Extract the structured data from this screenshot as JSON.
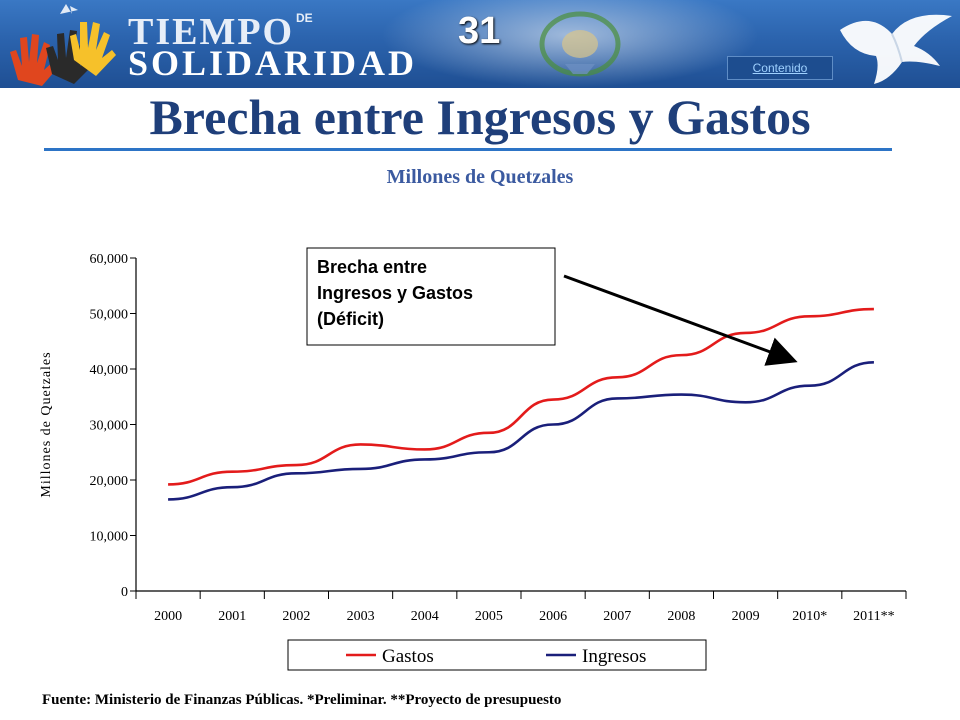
{
  "header": {
    "brand_line1": "TIEMPO",
    "brand_de": "DE",
    "brand_line2": "SOLIDARIDAD",
    "slide_number": "31",
    "contents_link": "Contenido"
  },
  "slide": {
    "title": "Brecha entre Ingresos y Gastos",
    "subtitle": "Millones de Quetzales",
    "source": "Fuente: Ministerio de Finanzas Públicas. *Preliminar.  **Proyecto de presupuesto"
  },
  "colors": {
    "gastos": "#e31b1b",
    "ingresos": "#1a1f7a",
    "title": "#1f3f7a",
    "rule": "#2d74c6"
  },
  "chart_data": {
    "type": "line",
    "title": "",
    "xlabel": "",
    "ylabel": "Millones de Quetzales",
    "categories": [
      "2000",
      "2001",
      "2002",
      "2003",
      "2004",
      "2005",
      "2006",
      "2007",
      "2008",
      "2009",
      "2010*",
      "2011**"
    ],
    "ylim": [
      0,
      60000
    ],
    "yticks": [
      0,
      10000,
      20000,
      30000,
      40000,
      50000,
      60000
    ],
    "ytick_labels": [
      "0",
      "10,000",
      "20,000",
      "30,000",
      "40,000",
      "50,000",
      "60,000"
    ],
    "grid": false,
    "legend_position": "bottom",
    "series": [
      {
        "name": "Gastos",
        "values": [
          19200,
          21500,
          22700,
          26400,
          25500,
          28500,
          34500,
          38500,
          42500,
          46500,
          49500,
          50800
        ]
      },
      {
        "name": "Ingresos",
        "values": [
          16500,
          18700,
          21200,
          22000,
          23700,
          25000,
          30000,
          34700,
          35400,
          34000,
          37000,
          41200
        ]
      }
    ],
    "annotation": {
      "lines": [
        "Brecha entre",
        "Ingresos y Gastos",
        "(Déficit)"
      ]
    }
  }
}
